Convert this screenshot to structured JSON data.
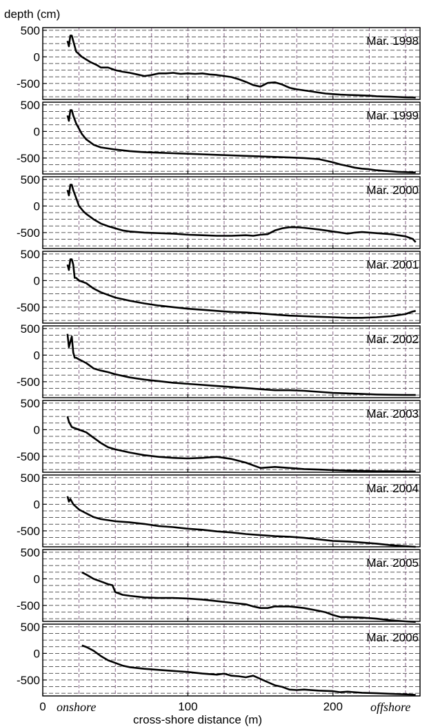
{
  "ylabel": "depth (cm)",
  "xlabel": "cross-shore distance (m)",
  "onshore_label": "onshore",
  "offshore_label": "offshore",
  "chart_data": {
    "type": "line",
    "xlim": [
      0,
      260
    ],
    "ylim": [
      -800,
      550
    ],
    "x_ticks": [
      0,
      100,
      200
    ],
    "y_ticks": [
      500,
      0,
      -500
    ],
    "grid": true,
    "grid_style": "dashed",
    "grid_colors": {
      "vertical": "#6b3f6b",
      "horizontal": "#222222"
    },
    "line_color": "#000000",
    "panels": [
      {
        "name": "Mar. 1998",
        "x": [
          17,
          18,
          19,
          20,
          21,
          23,
          25,
          27,
          30,
          33,
          37,
          40,
          45,
          50,
          55,
          60,
          65,
          70,
          75,
          80,
          85,
          90,
          95,
          100,
          105,
          110,
          115,
          120,
          125,
          130,
          135,
          140,
          145,
          150,
          155,
          160,
          165,
          170,
          175,
          180,
          185,
          190,
          195,
          200,
          205,
          210,
          215,
          220,
          225,
          230,
          235,
          240,
          245,
          250,
          255,
          257
        ],
        "y": [
          300,
          200,
          400,
          400,
          300,
          100,
          50,
          0,
          -50,
          -100,
          -150,
          -200,
          -200,
          -250,
          -280,
          -300,
          -330,
          -360,
          -340,
          -310,
          -310,
          -300,
          -320,
          -310,
          -320,
          -310,
          -330,
          -340,
          -360,
          -380,
          -420,
          -470,
          -530,
          -560,
          -490,
          -480,
          -520,
          -580,
          -610,
          -630,
          -650,
          -670,
          -690,
          -700,
          -710,
          -715,
          -720,
          -725,
          -730,
          -740,
          -745,
          -750,
          -755,
          -760,
          -762,
          -765
        ]
      },
      {
        "name": "Mar. 1999",
        "x": [
          17,
          18,
          19,
          20,
          21,
          23,
          25,
          27,
          30,
          35,
          40,
          45,
          50,
          60,
          70,
          80,
          90,
          100,
          110,
          120,
          130,
          140,
          150,
          160,
          170,
          180,
          190,
          200,
          205,
          210,
          215,
          220,
          225,
          230,
          235,
          240,
          245,
          250,
          255,
          257
        ],
        "y": [
          300,
          200,
          400,
          400,
          300,
          150,
          50,
          -50,
          -150,
          -250,
          -300,
          -320,
          -340,
          -370,
          -390,
          -400,
          -410,
          -420,
          -430,
          -440,
          -450,
          -460,
          -470,
          -480,
          -490,
          -500,
          -520,
          -580,
          -620,
          -650,
          -680,
          -700,
          -710,
          -730,
          -740,
          -750,
          -760,
          -765,
          -770,
          -770
        ]
      },
      {
        "name": "Mar. 2000",
        "x": [
          17,
          18,
          19,
          20,
          21,
          23,
          25,
          28,
          30,
          35,
          40,
          45,
          50,
          55,
          60,
          70,
          80,
          90,
          100,
          110,
          120,
          130,
          140,
          145,
          150,
          155,
          160,
          165,
          170,
          175,
          180,
          190,
          200,
          210,
          215,
          220,
          230,
          240,
          250,
          255,
          257
        ],
        "y": [
          300,
          200,
          400,
          400,
          300,
          150,
          0,
          -100,
          -150,
          -250,
          -330,
          -380,
          -420,
          -460,
          -480,
          -500,
          -510,
          -520,
          -540,
          -550,
          -560,
          -560,
          -550,
          -560,
          -540,
          -530,
          -460,
          -420,
          -400,
          -400,
          -410,
          -440,
          -480,
          -520,
          -500,
          -490,
          -510,
          -530,
          -570,
          -620,
          -680
        ]
      },
      {
        "name": "Mar. 2001",
        "x": [
          17,
          18,
          19,
          20,
          21,
          22,
          23,
          25,
          30,
          35,
          40,
          45,
          50,
          60,
          70,
          80,
          90,
          100,
          110,
          120,
          130,
          140,
          150,
          160,
          170,
          180,
          190,
          200,
          210,
          220,
          230,
          240,
          250,
          255,
          257
        ],
        "y": [
          300,
          200,
          400,
          400,
          300,
          50,
          50,
          0,
          -50,
          -150,
          -220,
          -270,
          -320,
          -380,
          -430,
          -470,
          -500,
          -530,
          -550,
          -570,
          -590,
          -600,
          -620,
          -640,
          -660,
          -670,
          -680,
          -690,
          -700,
          -700,
          -690,
          -670,
          -630,
          -580,
          -570
        ]
      },
      {
        "name": "Mar. 2002",
        "x": [
          17,
          18,
          19,
          20,
          21,
          22,
          23,
          25,
          30,
          35,
          40,
          45,
          50,
          60,
          70,
          80,
          90,
          100,
          110,
          120,
          130,
          140,
          150,
          160,
          170,
          180,
          190,
          200,
          210,
          220,
          230,
          240,
          250,
          257
        ],
        "y": [
          400,
          150,
          250,
          350,
          50,
          -50,
          -50,
          -80,
          -150,
          -250,
          -290,
          -320,
          -360,
          -420,
          -460,
          -490,
          -520,
          -540,
          -560,
          -580,
          -600,
          -620,
          -640,
          -660,
          -660,
          -670,
          -690,
          -710,
          -720,
          -730,
          -740,
          -745,
          -750,
          -750
        ]
      },
      {
        "name": "Mar. 2003",
        "x": [
          17,
          18,
          19,
          20,
          22,
          25,
          30,
          35,
          40,
          45,
          50,
          60,
          70,
          80,
          90,
          100,
          110,
          115,
          120,
          125,
          130,
          140,
          150,
          155,
          160,
          170,
          180,
          190,
          200,
          210,
          220,
          230,
          240,
          250,
          257
        ],
        "y": [
          250,
          150,
          100,
          50,
          30,
          0,
          -50,
          -150,
          -250,
          -330,
          -370,
          -430,
          -480,
          -510,
          -530,
          -540,
          -530,
          -520,
          -510,
          -530,
          -550,
          -620,
          -720,
          -710,
          -700,
          -720,
          -740,
          -750,
          -760,
          -770,
          -775,
          -780,
          -780,
          -785,
          -785
        ]
      },
      {
        "name": "Mar. 2004",
        "x": [
          17,
          18,
          19,
          20,
          21,
          23,
          25,
          30,
          35,
          40,
          50,
          60,
          70,
          80,
          90,
          100,
          110,
          120,
          130,
          140,
          150,
          160,
          170,
          180,
          190,
          200,
          210,
          220,
          230,
          240,
          250,
          257
        ],
        "y": [
          150,
          50,
          100,
          50,
          0,
          -50,
          -100,
          -170,
          -240,
          -280,
          -320,
          -340,
          -370,
          -410,
          -430,
          -460,
          -480,
          -510,
          -530,
          -560,
          -580,
          -600,
          -610,
          -630,
          -660,
          -690,
          -700,
          -720,
          -740,
          -770,
          -790,
          -800
        ]
      },
      {
        "name": "Mar. 2005",
        "x": [
          27,
          30,
          35,
          40,
          45,
          48,
          50,
          55,
          60,
          70,
          80,
          90,
          100,
          110,
          120,
          130,
          140,
          145,
          150,
          155,
          160,
          170,
          180,
          190,
          195,
          200,
          205,
          210,
          220,
          230,
          240,
          250,
          257
        ],
        "y": [
          120,
          80,
          0,
          -50,
          -100,
          -120,
          -250,
          -300,
          -320,
          -350,
          -360,
          -360,
          -370,
          -390,
          -420,
          -450,
          -480,
          -520,
          -550,
          -550,
          -520,
          -520,
          -550,
          -600,
          -630,
          -680,
          -720,
          -720,
          -730,
          -750,
          -780,
          -800,
          -810
        ]
      },
      {
        "name": "Mar. 2006",
        "x": [
          27,
          30,
          35,
          40,
          45,
          50,
          55,
          60,
          70,
          80,
          90,
          100,
          110,
          120,
          125,
          130,
          135,
          140,
          145,
          150,
          155,
          160,
          165,
          170,
          175,
          180,
          190,
          200,
          205,
          210,
          220,
          230,
          240,
          250,
          257
        ],
        "y": [
          150,
          120,
          50,
          -50,
          -130,
          -180,
          -230,
          -260,
          -290,
          -310,
          -330,
          -350,
          -380,
          -400,
          -380,
          -420,
          -430,
          -450,
          -420,
          -480,
          -540,
          -600,
          -630,
          -680,
          -690,
          -680,
          -700,
          -710,
          -730,
          -720,
          -740,
          -750,
          -760,
          -770,
          -780
        ]
      }
    ]
  }
}
